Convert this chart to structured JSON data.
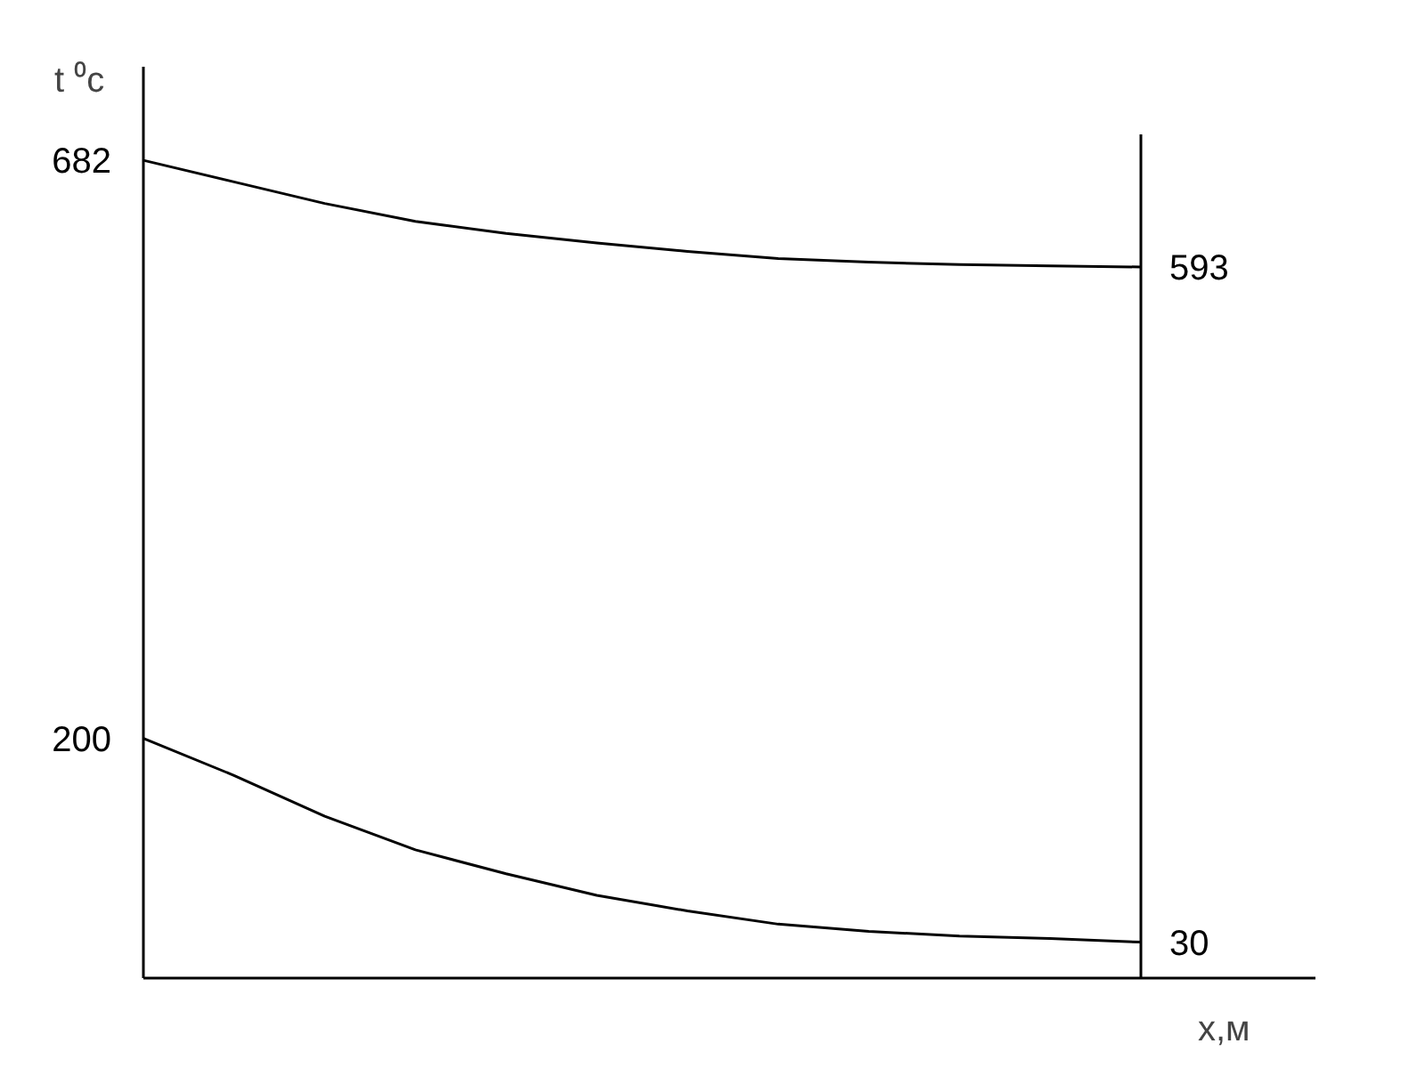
{
  "chart_data": {
    "type": "line",
    "ylabel": "t ⁰c",
    "xlabel": "x,м",
    "categories": [
      null,
      null,
      null,
      null,
      null,
      null,
      null,
      null,
      null,
      null,
      null,
      null
    ],
    "marker": "none",
    "line_style": "solid",
    "ylim": [
      0,
      760
    ],
    "series": [
      {
        "color": "#000000",
        "values": [
          682,
          664,
          646,
          631,
          621,
          613,
          606,
          600,
          597,
          595,
          594,
          593
        ],
        "value_labels": [
          "682",
          null,
          null,
          null,
          null,
          null,
          null,
          null,
          null,
          null,
          null,
          "593"
        ]
      },
      {
        "color": "#000000",
        "values": [
          200,
          169,
          135,
          107,
          87,
          69,
          56,
          45,
          39,
          35,
          33,
          30
        ],
        "value_labels": [
          "200",
          null,
          null,
          null,
          null,
          null,
          null,
          null,
          null,
          null,
          null,
          "30"
        ]
      }
    ]
  }
}
